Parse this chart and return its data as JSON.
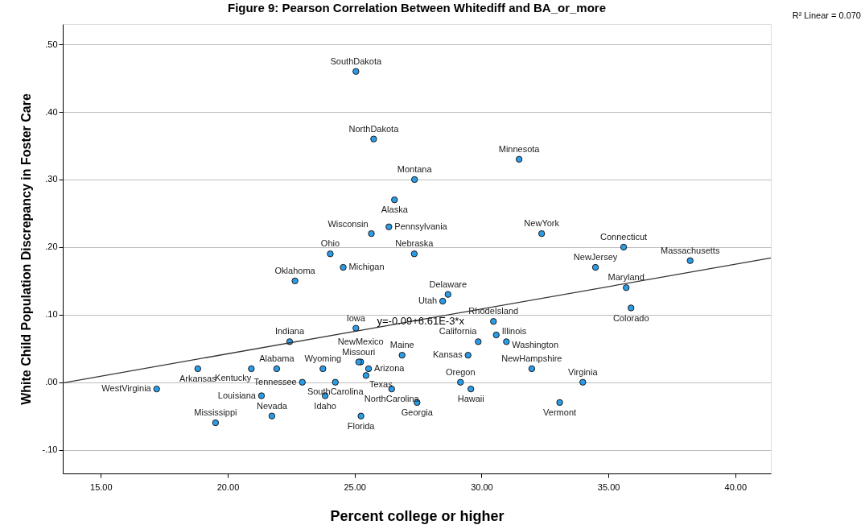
{
  "chart_data": {
    "type": "scatter",
    "title": "Figure 9: Pearson Correlation Between Whitediff and BA_or_more",
    "xlabel": "Percent college or higher",
    "ylabel": "White Child Population Discrepancy in Foster Care",
    "xlim": [
      13.5,
      41.4
    ],
    "ylim": [
      -0.135,
      0.53
    ],
    "xticks": [
      {
        "value": 15,
        "label": "15.00"
      },
      {
        "value": 20,
        "label": "20.00"
      },
      {
        "value": 25,
        "label": "25.00"
      },
      {
        "value": 30,
        "label": "30.00"
      },
      {
        "value": 35,
        "label": "35.00"
      },
      {
        "value": 40,
        "label": "40.00"
      }
    ],
    "yticks": [
      {
        "value": -0.1,
        "label": "-.10"
      },
      {
        "value": 0,
        "label": ".00"
      },
      {
        "value": 0.1,
        "label": ".10"
      },
      {
        "value": 0.2,
        "label": ".20"
      },
      {
        "value": 0.3,
        "label": ".30"
      },
      {
        "value": 0.4,
        "label": ".40"
      },
      {
        "value": 0.5,
        "label": ".50"
      }
    ],
    "grid": "y",
    "marker": "circle",
    "series": [
      {
        "color": "#2b9de8",
        "x": [
          25.05,
          25.75,
          27.36,
          31.48,
          26.57,
          26.35,
          25.66,
          24.04,
          27.35,
          32.37,
          35.6,
          38.22,
          24.55,
          22.65,
          34.49,
          35.7,
          35.89,
          28.68,
          28.47,
          25.05,
          30.47,
          30.58,
          30.98,
          22.44,
          26.87,
          29.87,
          21.93,
          25.24,
          18.82,
          23.75,
          25.16,
          29.47,
          31.98,
          25.55,
          33.99,
          17.2,
          20.93,
          22.94,
          26.46,
          29.17,
          25.45,
          21.33,
          23.84,
          21.74,
          29.58,
          19.52,
          24.24,
          33.08,
          25.25,
          27.46
        ],
        "values": [
          0.46,
          0.36,
          0.3,
          0.33,
          0.27,
          0.23,
          0.22,
          0.19,
          0.19,
          0.22,
          0.2,
          0.18,
          0.17,
          0.15,
          0.17,
          0.14,
          0.11,
          0.13,
          0.12,
          0.08,
          0.09,
          0.07,
          0.06,
          0.06,
          0.04,
          0.06,
          0.02,
          0.03,
          0.02,
          0.02,
          0.03,
          0.04,
          0.02,
          0.02,
          0.0,
          -0.01,
          0.02,
          0.0,
          -0.01,
          0.0,
          0.01,
          -0.02,
          -0.02,
          -0.05,
          -0.01,
          -0.06,
          0.0,
          -0.03,
          -0.05,
          -0.03
        ],
        "value_labels": [
          "SouthDakota",
          "NorthDakota",
          "Montana",
          "Minnesota",
          "Alaska",
          "Pennsylvania",
          "Wisconsin",
          "Ohio",
          "Nebraska",
          "NewYork",
          "Connecticut",
          "Massachusetts",
          "Michigan",
          "Oklahoma",
          "NewJersey",
          "Maryland",
          "Colorado",
          "Delaware",
          "Utah",
          "Iowa",
          "RhodeIsland",
          "Illinois",
          "Washington",
          "Indiana",
          "Maine",
          "California",
          "Alabama",
          "NewMexico",
          "Arkansas",
          "Wyoming",
          "Missouri",
          "Kansas",
          "NewHampshire",
          "Arizona",
          "Virginia",
          "WestVirginia",
          "Kentucky",
          "Tennessee",
          "NorthCarolina",
          "Oregon",
          "Texas",
          "Louisiana",
          "Idaho",
          "Nevada",
          "Hawaii",
          "Mississippi",
          "SouthCarolina",
          "Vermont",
          "Florida",
          "Georgia"
        ]
      },
      {
        "type": "line",
        "color": "#333333",
        "line_style": "solid",
        "marker": "none",
        "x": [
          13.5,
          41.4
        ],
        "values": [
          -0.001,
          0.184
        ]
      }
    ],
    "annotations": [
      "R² Linear = 0.070",
      {
        "text": "y=-0.09+6.61E-3*x",
        "x": 27.6,
        "y": 0.09
      }
    ]
  }
}
